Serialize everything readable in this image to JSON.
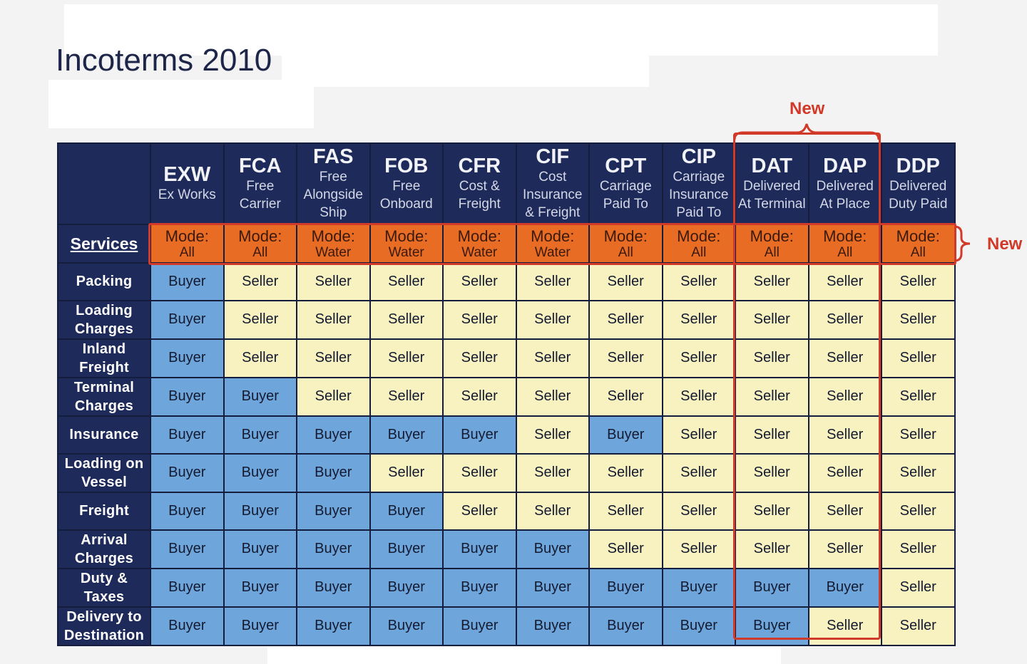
{
  "title": "Incoterms 2010",
  "services_label": "Services",
  "new_label": "New",
  "terms": [
    {
      "code": "EXW",
      "name": "Ex Works",
      "mode": "All"
    },
    {
      "code": "FCA",
      "name": "Free Carrier",
      "mode": "All"
    },
    {
      "code": "FAS",
      "name": "Free Alongside Ship",
      "mode": "Water"
    },
    {
      "code": "FOB",
      "name": "Free Onboard",
      "mode": "Water"
    },
    {
      "code": "CFR",
      "name": "Cost & Freight",
      "mode": "Water"
    },
    {
      "code": "CIF",
      "name": "Cost Insurance & Freight",
      "mode": "Water"
    },
    {
      "code": "CPT",
      "name": "Carriage Paid To",
      "mode": "All"
    },
    {
      "code": "CIP",
      "name": "Carriage Insurance Paid To",
      "mode": "All"
    },
    {
      "code": "DAT",
      "name": "Delivered At Terminal",
      "mode": "All"
    },
    {
      "code": "DAP",
      "name": "Delivered At Place",
      "mode": "All"
    },
    {
      "code": "DDP",
      "name": "Delivered Duty Paid",
      "mode": "All"
    }
  ],
  "mode_prefix": "Mode:",
  "services": [
    {
      "label": "Packing",
      "values": [
        "Buyer",
        "Seller",
        "Seller",
        "Seller",
        "Seller",
        "Seller",
        "Seller",
        "Seller",
        "Seller",
        "Seller",
        "Seller"
      ]
    },
    {
      "label": "Loading Charges",
      "values": [
        "Buyer",
        "Seller",
        "Seller",
        "Seller",
        "Seller",
        "Seller",
        "Seller",
        "Seller",
        "Seller",
        "Seller",
        "Seller"
      ]
    },
    {
      "label": "Inland Freight",
      "values": [
        "Buyer",
        "Seller",
        "Seller",
        "Seller",
        "Seller",
        "Seller",
        "Seller",
        "Seller",
        "Seller",
        "Seller",
        "Seller"
      ]
    },
    {
      "label": "Terminal Charges",
      "values": [
        "Buyer",
        "Buyer",
        "Seller",
        "Seller",
        "Seller",
        "Seller",
        "Seller",
        "Seller",
        "Seller",
        "Seller",
        "Seller"
      ]
    },
    {
      "label": "Insurance",
      "values": [
        "Buyer",
        "Buyer",
        "Buyer",
        "Buyer",
        "Buyer",
        "Seller",
        "Buyer",
        "Seller",
        "Seller",
        "Seller",
        "Seller"
      ]
    },
    {
      "label": "Loading on Vessel",
      "values": [
        "Buyer",
        "Buyer",
        "Buyer",
        "Seller",
        "Seller",
        "Seller",
        "Seller",
        "Seller",
        "Seller",
        "Seller",
        "Seller"
      ]
    },
    {
      "label": "Freight",
      "values": [
        "Buyer",
        "Buyer",
        "Buyer",
        "Buyer",
        "Seller",
        "Seller",
        "Seller",
        "Seller",
        "Seller",
        "Seller",
        "Seller"
      ]
    },
    {
      "label": "Arrival Charges",
      "values": [
        "Buyer",
        "Buyer",
        "Buyer",
        "Buyer",
        "Buyer",
        "Buyer",
        "Seller",
        "Seller",
        "Seller",
        "Seller",
        "Seller"
      ]
    },
    {
      "label": "Duty & Taxes",
      "values": [
        "Buyer",
        "Buyer",
        "Buyer",
        "Buyer",
        "Buyer",
        "Buyer",
        "Buyer",
        "Buyer",
        "Buyer",
        "Buyer",
        "Seller"
      ]
    },
    {
      "label": "Delivery to Destination",
      "values": [
        "Buyer",
        "Buyer",
        "Buyer",
        "Buyer",
        "Buyer",
        "Buyer",
        "Buyer",
        "Buyer",
        "Buyer",
        "Seller",
        "Seller"
      ]
    }
  ],
  "colors": {
    "buyer": "#6ea6dc",
    "seller": "#f7f2c0",
    "mode": "#e86c24",
    "header": "#1d2a5a",
    "highlight": "#d13a28"
  }
}
